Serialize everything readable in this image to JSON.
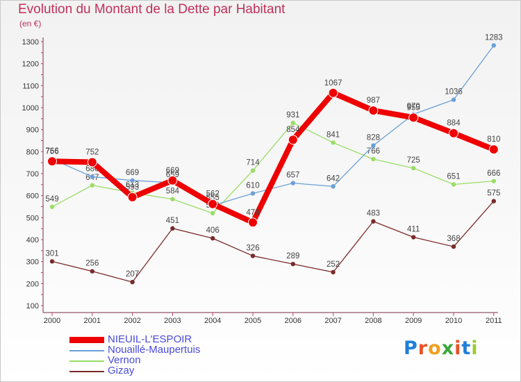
{
  "title": "Evolution du Montant de la Dette par Habitant",
  "unit_label": "(en €)",
  "logo": {
    "letters": [
      "P",
      "r",
      "o",
      "x",
      "i",
      "t",
      "i"
    ],
    "colors": [
      "#1f7fd8",
      "#e8522a",
      "#f0a020",
      "#3aa83a",
      "#e8522a",
      "#1f7fd8",
      "#9acd32"
    ]
  },
  "chart_data": {
    "type": "line",
    "title": "Evolution du Montant de la Dette par Habitant",
    "ylabel": "(en €)",
    "xlabel": "",
    "x": [
      "2000",
      "2001",
      "2002",
      "2003",
      "2004",
      "2005",
      "2006",
      "2007",
      "2008",
      "2009",
      "2010",
      "2011"
    ],
    "ylim": [
      100,
      1300
    ],
    "yticks": [
      "100",
      "200",
      "300",
      "400",
      "500",
      "600",
      "700",
      "800",
      "900",
      "1000",
      "1100",
      "1200",
      "1300"
    ],
    "grid": false,
    "legend_position": "bottom-left",
    "series": [
      {
        "name": "Gizay",
        "color": "#7a2a2a",
        "values": [
          301,
          256,
          207,
          451,
          406,
          326,
          289,
          252,
          483,
          411,
          368,
          575
        ],
        "labels": [
          "301",
          "256",
          "207",
          "451",
          "406",
          "326",
          "289",
          "252",
          "483",
          "411",
          "368",
          "575"
        ]
      },
      {
        "name": "Vernon",
        "color": "#99dd66",
        "values": [
          549,
          647,
          613,
          584,
          520,
          714,
          931,
          841,
          766,
          725,
          651,
          666
        ],
        "labels": [
          "549",
          "647",
          "613",
          "584",
          "520",
          "714",
          "931",
          "841",
          "766",
          "725",
          "651",
          "666"
        ]
      },
      {
        "name": "Nouaillé-Maupertuis",
        "color": "#6aa0d8",
        "values": [
          766,
          686,
          669,
          659,
          555,
          610,
          657,
          642,
          828,
          970,
          1036,
          1283
        ],
        "labels": [
          "766",
          "686",
          "669",
          "659",
          "555",
          "610",
          "657",
          "642",
          "828",
          "970",
          "1036",
          "1283"
        ]
      },
      {
        "name": "NIEUIL-L'ESPOIR",
        "color": "#ee0000",
        "values": [
          756,
          752,
          593,
          669,
          562,
          478,
          854,
          1067,
          987,
          955,
          884,
          810
        ],
        "labels": [
          "756",
          "752",
          "593",
          "669",
          "562",
          "478",
          "854",
          "1067",
          "987",
          "955",
          "884",
          "810"
        ]
      }
    ]
  }
}
